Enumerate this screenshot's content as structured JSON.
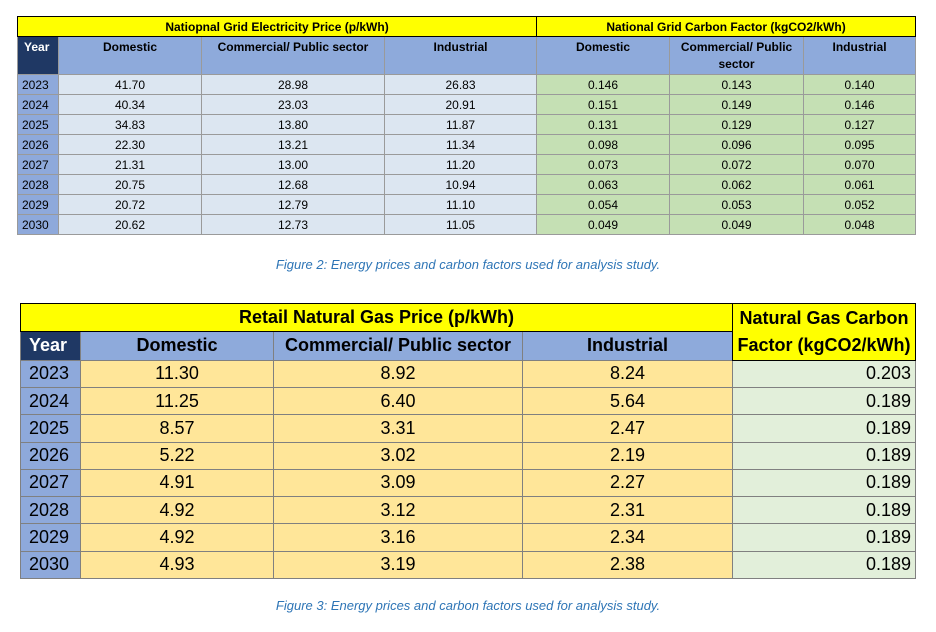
{
  "table1": {
    "title_electricity": "Natiopnal Grid Electricity Price (p/kWh)",
    "title_carbon": "National Grid Carbon Factor (kgCO2/kWh)",
    "headers": {
      "year": "Year",
      "elec_domestic": "Domestic",
      "elec_commercial": "Commercial/ Public sector",
      "elec_industrial": "Industrial",
      "carb_domestic": "Domestic",
      "carb_commercial": "Commercial/ Public sector",
      "carb_industrial": "Industrial"
    },
    "rows": [
      [
        "2023",
        "41.70",
        "28.98",
        "26.83",
        "0.146",
        "0.143",
        "0.140"
      ],
      [
        "2024",
        "40.34",
        "23.03",
        "20.91",
        "0.151",
        "0.149",
        "0.146"
      ],
      [
        "2025",
        "34.83",
        "13.80",
        "11.87",
        "0.131",
        "0.129",
        "0.127"
      ],
      [
        "2026",
        "22.30",
        "13.21",
        "11.34",
        "0.098",
        "0.096",
        "0.095"
      ],
      [
        "2027",
        "21.31",
        "13.00",
        "11.20",
        "0.073",
        "0.072",
        "0.070"
      ],
      [
        "2028",
        "20.75",
        "12.68",
        "10.94",
        "0.063",
        "0.062",
        "0.061"
      ],
      [
        "2029",
        "20.72",
        "12.79",
        "11.10",
        "0.054",
        "0.053",
        "0.052"
      ],
      [
        "2030",
        "20.62",
        "12.73",
        "11.05",
        "0.049",
        "0.049",
        "0.048"
      ]
    ]
  },
  "caption1": "Figure 2: Energy prices and carbon factors used for analysis study.",
  "table2": {
    "title_gas": "Retail Natural Gas Price (p/kWh)",
    "title_carbon": "Natural Gas Carbon Factor (kgCO2/kWh)",
    "headers": {
      "year": "Year",
      "domestic": "Domestic",
      "commercial": "Commercial/ Public sector",
      "industrial": "Industrial"
    },
    "rows": [
      [
        "2023",
        "11.30",
        "8.92",
        "8.24",
        "0.203"
      ],
      [
        "2024",
        "11.25",
        "6.40",
        "5.64",
        "0.189"
      ],
      [
        "2025",
        "8.57",
        "3.31",
        "2.47",
        "0.189"
      ],
      [
        "2026",
        "5.22",
        "3.02",
        "2.19",
        "0.189"
      ],
      [
        "2027",
        "4.91",
        "3.09",
        "2.27",
        "0.189"
      ],
      [
        "2028",
        "4.92",
        "3.12",
        "2.31",
        "0.189"
      ],
      [
        "2029",
        "4.92",
        "3.16",
        "2.34",
        "0.189"
      ],
      [
        "2030",
        "4.93",
        "3.19",
        "2.38",
        "0.189"
      ]
    ]
  },
  "caption2": "Figure 3: Energy prices and carbon factors used for analysis study."
}
